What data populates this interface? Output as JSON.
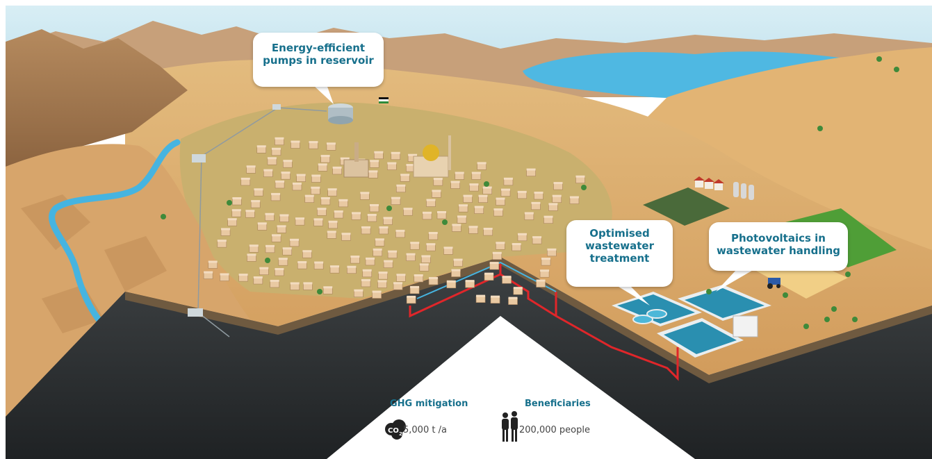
{
  "callouts": {
    "pumps": [
      "Energy-efficient",
      "pumps in reservoir"
    ],
    "wastewater": [
      "Optimised",
      "wastewater",
      "treatment"
    ],
    "photovoltaics": [
      "Photovoltaics in",
      "wastewater handling"
    ]
  },
  "stats": {
    "ghg": {
      "heading": "GHG mitigation",
      "value": "5,000 t /a",
      "icon": "co2-cloud-icon",
      "icon_label": "CO",
      "icon_subscript": "2"
    },
    "beneficiaries": {
      "heading": "Beneficiaries",
      "value": "200,000 people",
      "icon": "people-silhouette-icon"
    }
  },
  "colors": {
    "accent": "#17708c",
    "sky": "#cfe8f1",
    "sand": "#d9aa6c",
    "water": "#46b4e0",
    "pipe": "#e0262a",
    "soil_dark": "#2f3234",
    "field_green": "#4f9e37"
  }
}
